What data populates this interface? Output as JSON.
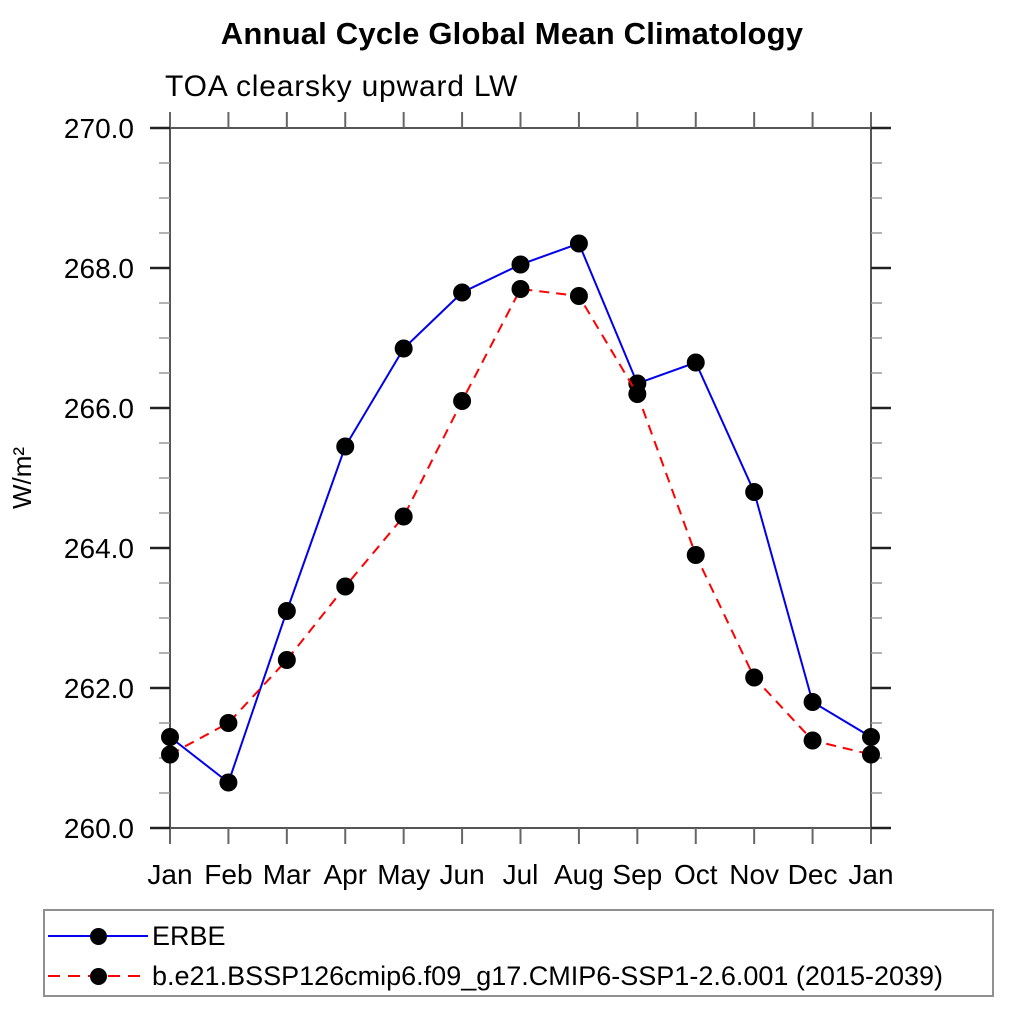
{
  "page": {
    "background": "#ffffff"
  },
  "chart_data": {
    "type": "line",
    "title": "Annual Cycle Global Mean Climatology",
    "subtitle": "TOA clearsky upward LW",
    "ylabel": "W/m²",
    "xlabel": "",
    "categories": [
      "Jan",
      "Feb",
      "Mar",
      "Apr",
      "May",
      "Jun",
      "Jul",
      "Aug",
      "Sep",
      "Oct",
      "Nov",
      "Dec",
      "Jan"
    ],
    "ylim": [
      260.0,
      270.0
    ],
    "y_tick_labels": [
      "260.0",
      "262.0",
      "264.0",
      "266.0",
      "268.0",
      "270.0"
    ],
    "y_major_step": 2.0,
    "y_minor_step": 0.5,
    "grid": false,
    "legend_position": "bottom-left-box",
    "series": [
      {
        "name": "ERBE",
        "color": "#0000ee",
        "line_style": "solid",
        "marker": "filled-circle",
        "marker_color": "#000000",
        "values": [
          261.3,
          260.65,
          263.1,
          265.45,
          266.85,
          267.65,
          268.05,
          268.35,
          266.35,
          266.65,
          264.8,
          261.8,
          261.3
        ]
      },
      {
        "name": "b.e21.BSSP126cmip6.f09_g17.CMIP6-SSP1-2.6.001 (2015-2039)",
        "color": "#ff0000",
        "line_style": "dashed",
        "marker": "filled-circle",
        "marker_color": "#000000",
        "values": [
          261.05,
          261.5,
          262.4,
          263.45,
          264.45,
          266.1,
          267.7,
          267.6,
          266.2,
          263.9,
          262.15,
          261.25,
          261.05
        ]
      }
    ]
  }
}
